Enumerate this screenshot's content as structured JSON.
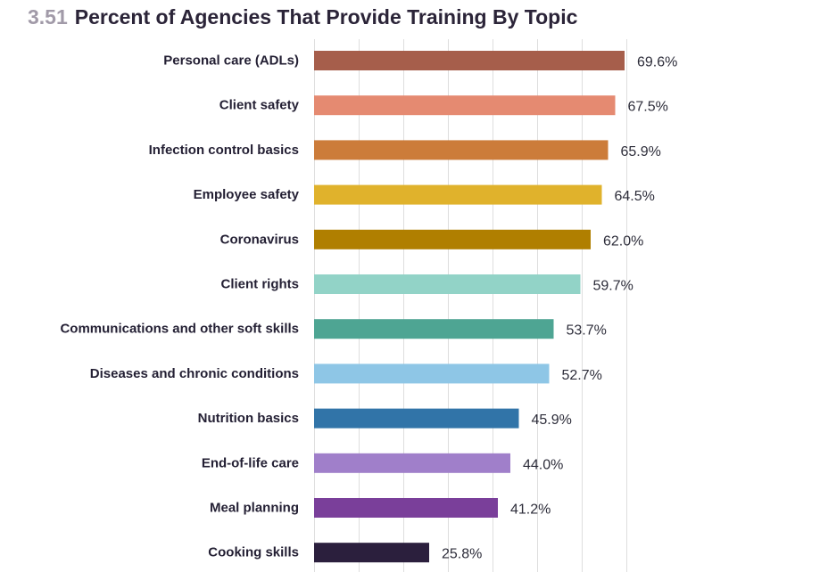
{
  "header": {
    "number": "3.51",
    "title": "Percent of Agencies That Provide Training By Topic"
  },
  "chart_data": {
    "type": "bar",
    "orientation": "horizontal",
    "title": "Percent of Agencies That Provide Training By Topic",
    "xlabel": "",
    "ylabel": "",
    "xlim": [
      0,
      75
    ],
    "grid": true,
    "unit": "%",
    "categories": [
      "Personal care (ADLs)",
      "Client safety",
      "Infection control basics",
      "Employee safety",
      "Coronavirus",
      "Client rights",
      "Communications and other soft skills",
      "Diseases and chronic conditions",
      "Nutrition basics",
      "End-of-life care",
      "Meal planning",
      "Cooking skills"
    ],
    "values": [
      69.6,
      67.5,
      65.9,
      64.5,
      62.0,
      59.7,
      53.7,
      52.7,
      45.9,
      44.0,
      41.2,
      25.8
    ],
    "value_labels": [
      "69.6%",
      "67.5%",
      "65.9%",
      "64.5%",
      "62.0%",
      "59.7%",
      "53.7%",
      "52.7%",
      "45.9%",
      "44.0%",
      "41.2%",
      "25.8%"
    ],
    "colors": [
      "#a65e4b",
      "#e58a71",
      "#cc7c3a",
      "#e0b22c",
      "#b07f00",
      "#92d3c7",
      "#4ea593",
      "#8ec6e6",
      "#3174a8",
      "#a07fca",
      "#7a3f9a",
      "#2b1f3d"
    ]
  }
}
